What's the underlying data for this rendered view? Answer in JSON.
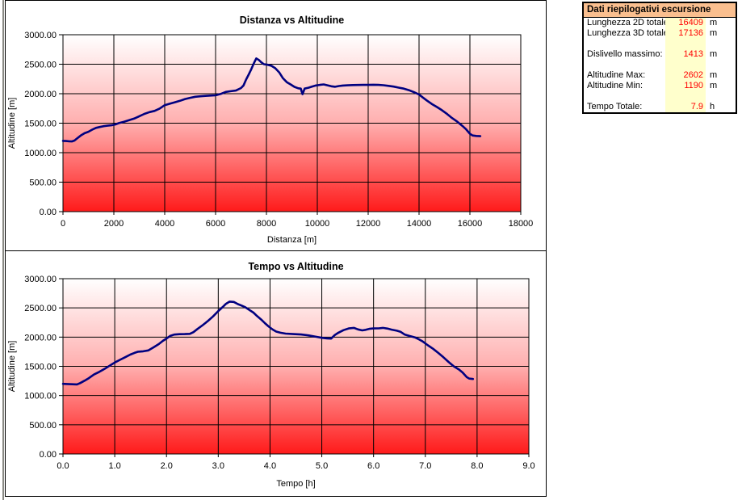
{
  "summary_panel": {
    "title": "Dati riepilogativi escursione",
    "rows": [
      {
        "label": "Lunghezza 2D totale:",
        "value": "16409",
        "unit": "m"
      },
      {
        "label": "Lunghezza 3D totale:",
        "value": "17136",
        "unit": "m"
      },
      {
        "label": "",
        "value": "",
        "unit": ""
      },
      {
        "label": "Dislivello massimo:",
        "value": "1413",
        "unit": "m"
      },
      {
        "label": "",
        "value": "",
        "unit": ""
      },
      {
        "label": "Altitudine Max:",
        "value": "2602",
        "unit": "m"
      },
      {
        "label": "Altitudine Min:",
        "value": "1190",
        "unit": "m"
      },
      {
        "label": "",
        "value": "",
        "unit": ""
      },
      {
        "label": "Tempo Totale:",
        "value": "7.9",
        "unit": "h"
      }
    ],
    "colors": {
      "header_bg": "#FABF8F",
      "value_bg": "#FFFFCC",
      "value_text": "#FF0000"
    }
  },
  "chart_data": [
    {
      "type": "line",
      "title": "Distanza vs Altitudine",
      "xlabel": "Distanza [m]",
      "ylabel": "Altitudine [m]",
      "xlim": [
        0,
        18000
      ],
      "ylim": [
        0,
        3000
      ],
      "grid": true,
      "legend": "none",
      "x_ticks": [
        0,
        2000,
        4000,
        6000,
        8000,
        10000,
        12000,
        14000,
        16000,
        18000
      ],
      "x_tick_labels": [
        "0",
        "2000",
        "4000",
        "6000",
        "8000",
        "10000",
        "12000",
        "14000",
        "16000",
        "18000"
      ],
      "y_ticks": [
        0,
        500,
        1000,
        1500,
        2000,
        2500,
        3000
      ],
      "y_tick_labels": [
        "0.00",
        "500.00",
        "1000.00",
        "1500.00",
        "2000.00",
        "2500.00",
        "3000.00"
      ],
      "line_color": "#000080",
      "bg_gradient": [
        "#FFFFFF",
        "#FFAFAF",
        "#FF1A1A"
      ],
      "series": [
        {
          "name": "Altitudine",
          "points": [
            [
              0,
              1200
            ],
            [
              120,
              1197
            ],
            [
              250,
              1192
            ],
            [
              350,
              1190
            ],
            [
              450,
              1205
            ],
            [
              550,
              1240
            ],
            [
              700,
              1290
            ],
            [
              850,
              1330
            ],
            [
              1000,
              1355
            ],
            [
              1150,
              1390
            ],
            [
              1300,
              1420
            ],
            [
              1450,
              1435
            ],
            [
              1600,
              1450
            ],
            [
              1750,
              1458
            ],
            [
              1900,
              1465
            ],
            [
              2050,
              1478
            ],
            [
              2200,
              1502
            ],
            [
              2400,
              1525
            ],
            [
              2600,
              1550
            ],
            [
              2800,
              1578
            ],
            [
              3000,
              1618
            ],
            [
              3200,
              1658
            ],
            [
              3400,
              1688
            ],
            [
              3600,
              1708
            ],
            [
              3800,
              1748
            ],
            [
              4000,
              1806
            ],
            [
              4200,
              1830
            ],
            [
              4400,
              1855
            ],
            [
              4600,
              1880
            ],
            [
              4800,
              1910
            ],
            [
              5000,
              1930
            ],
            [
              5200,
              1948
            ],
            [
              5400,
              1956
            ],
            [
              5600,
              1963
            ],
            [
              5800,
              1968
            ],
            [
              6000,
              1973
            ],
            [
              6200,
              1996
            ],
            [
              6400,
              2030
            ],
            [
              6600,
              2043
            ],
            [
              6800,
              2053
            ],
            [
              7000,
              2096
            ],
            [
              7100,
              2140
            ],
            [
              7200,
              2240
            ],
            [
              7300,
              2322
            ],
            [
              7400,
              2412
            ],
            [
              7500,
              2512
            ],
            [
              7600,
              2598
            ],
            [
              7700,
              2572
            ],
            [
              7800,
              2532
            ],
            [
              7900,
              2500
            ],
            [
              8050,
              2490
            ],
            [
              8200,
              2472
            ],
            [
              8350,
              2432
            ],
            [
              8500,
              2362
            ],
            [
              8650,
              2262
            ],
            [
              8800,
              2196
            ],
            [
              8950,
              2158
            ],
            [
              9100,
              2116
            ],
            [
              9250,
              2092
            ],
            [
              9350,
              2086
            ],
            [
              9420,
              1992
            ],
            [
              9500,
              2086
            ],
            [
              9650,
              2102
            ],
            [
              9800,
              2122
            ],
            [
              9950,
              2140
            ],
            [
              10100,
              2150
            ],
            [
              10250,
              2158
            ],
            [
              10400,
              2142
            ],
            [
              10550,
              2126
            ],
            [
              10700,
              2118
            ],
            [
              10850,
              2130
            ],
            [
              11000,
              2138
            ],
            [
              11200,
              2142
            ],
            [
              11400,
              2146
            ],
            [
              11600,
              2148
            ],
            [
              11800,
              2150
            ],
            [
              12000,
              2150
            ],
            [
              12200,
              2152
            ],
            [
              12400,
              2150
            ],
            [
              12600,
              2144
            ],
            [
              12800,
              2133
            ],
            [
              13000,
              2120
            ],
            [
              13200,
              2103
            ],
            [
              13400,
              2086
            ],
            [
              13600,
              2060
            ],
            [
              13800,
              2026
            ],
            [
              14000,
              1986
            ],
            [
              14150,
              1936
            ],
            [
              14300,
              1886
            ],
            [
              14500,
              1826
            ],
            [
              14700,
              1776
            ],
            [
              14900,
              1720
            ],
            [
              15100,
              1656
            ],
            [
              15300,
              1586
            ],
            [
              15500,
              1526
            ],
            [
              15700,
              1456
            ],
            [
              15850,
              1396
            ],
            [
              16000,
              1320
            ],
            [
              16100,
              1292
            ],
            [
              16250,
              1284
            ],
            [
              16409,
              1280
            ]
          ]
        }
      ]
    },
    {
      "type": "line",
      "title": "Tempo vs Altitudine",
      "xlabel": "Tempo [h]",
      "ylabel": "Altitudine [m]",
      "xlim": [
        0,
        9
      ],
      "ylim": [
        0,
        3000
      ],
      "grid": true,
      "legend": "none",
      "x_ticks": [
        0,
        1,
        2,
        3,
        4,
        5,
        6,
        7,
        8,
        9
      ],
      "x_tick_labels": [
        "0.0",
        "1.0",
        "2.0",
        "3.0",
        "4.0",
        "5.0",
        "6.0",
        "7.0",
        "8.0",
        "9.0"
      ],
      "y_ticks": [
        0,
        500,
        1000,
        1500,
        2000,
        2500,
        3000
      ],
      "y_tick_labels": [
        "0.00",
        "500.00",
        "1000.00",
        "1500.00",
        "2000.00",
        "2500.00",
        "3000.00"
      ],
      "line_color": "#000080",
      "bg_gradient": [
        "#FFFFFF",
        "#FFAFAF",
        "#FF1A1A"
      ],
      "series": [
        {
          "name": "Altitudine",
          "points": [
            [
              0,
              1200
            ],
            [
              0.08,
              1197
            ],
            [
              0.18,
              1193
            ],
            [
              0.27,
              1190
            ],
            [
              0.33,
              1213
            ],
            [
              0.42,
              1255
            ],
            [
              0.5,
              1298
            ],
            [
              0.6,
              1360
            ],
            [
              0.7,
              1405
            ],
            [
              0.8,
              1455
            ],
            [
              0.9,
              1510
            ],
            [
              1.0,
              1565
            ],
            [
              1.1,
              1610
            ],
            [
              1.2,
              1655
            ],
            [
              1.3,
              1700
            ],
            [
              1.38,
              1730
            ],
            [
              1.45,
              1750
            ],
            [
              1.55,
              1757
            ],
            [
              1.65,
              1772
            ],
            [
              1.75,
              1825
            ],
            [
              1.85,
              1880
            ],
            [
              1.93,
              1935
            ],
            [
              2.0,
              1975
            ],
            [
              2.07,
              2020
            ],
            [
              2.15,
              2043
            ],
            [
              2.25,
              2050
            ],
            [
              2.35,
              2052
            ],
            [
              2.45,
              2056
            ],
            [
              2.52,
              2085
            ],
            [
              2.6,
              2140
            ],
            [
              2.7,
              2205
            ],
            [
              2.8,
              2275
            ],
            [
              2.9,
              2355
            ],
            [
              3.0,
              2445
            ],
            [
              3.08,
              2510
            ],
            [
              3.15,
              2570
            ],
            [
              3.22,
              2608
            ],
            [
              3.3,
              2602
            ],
            [
              3.38,
              2565
            ],
            [
              3.45,
              2540
            ],
            [
              3.52,
              2512
            ],
            [
              3.6,
              2465
            ],
            [
              3.68,
              2420
            ],
            [
              3.75,
              2360
            ],
            [
              3.83,
              2300
            ],
            [
              3.9,
              2240
            ],
            [
              3.97,
              2185
            ],
            [
              4.05,
              2130
            ],
            [
              4.12,
              2095
            ],
            [
              4.2,
              2075
            ],
            [
              4.3,
              2060
            ],
            [
              4.45,
              2052
            ],
            [
              4.6,
              2045
            ],
            [
              4.75,
              2028
            ],
            [
              4.9,
              2005
            ],
            [
              5.0,
              1988
            ],
            [
              5.1,
              1978
            ],
            [
              5.18,
              1974
            ],
            [
              5.25,
              2035
            ],
            [
              5.32,
              2075
            ],
            [
              5.42,
              2120
            ],
            [
              5.52,
              2148
            ],
            [
              5.62,
              2158
            ],
            [
              5.7,
              2132
            ],
            [
              5.78,
              2115
            ],
            [
              5.85,
              2125
            ],
            [
              5.92,
              2142
            ],
            [
              6.0,
              2148
            ],
            [
              6.1,
              2150
            ],
            [
              6.18,
              2158
            ],
            [
              6.27,
              2145
            ],
            [
              6.35,
              2128
            ],
            [
              6.45,
              2110
            ],
            [
              6.52,
              2092
            ],
            [
              6.6,
              2045
            ],
            [
              6.7,
              2018
            ],
            [
              6.8,
              1995
            ],
            [
              6.88,
              1960
            ],
            [
              6.95,
              1925
            ],
            [
              7.05,
              1860
            ],
            [
              7.15,
              1800
            ],
            [
              7.25,
              1730
            ],
            [
              7.35,
              1655
            ],
            [
              7.45,
              1575
            ],
            [
              7.55,
              1500
            ],
            [
              7.65,
              1445
            ],
            [
              7.72,
              1395
            ],
            [
              7.8,
              1315
            ],
            [
              7.85,
              1290
            ],
            [
              7.92,
              1283
            ]
          ]
        }
      ]
    }
  ]
}
